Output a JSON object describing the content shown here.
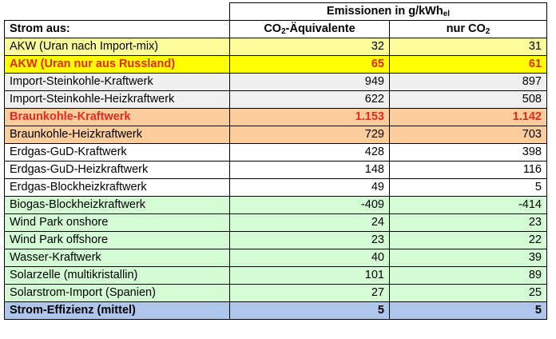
{
  "header": {
    "group_title_main": "Emissionen in g/kWh",
    "group_title_sub": "el",
    "row_label": "Strom aus:",
    "col1_pre": "CO",
    "col1_sub": "2",
    "col1_post": "-Äquivalente",
    "col2_pre": "nur CO",
    "col2_sub": "2"
  },
  "rows": [
    {
      "label": "AKW (Uran nach Import-mix)",
      "co2eq": "32",
      "co2": "31",
      "bg": "#fdfd9b",
      "style": "normal"
    },
    {
      "label": "AKW (Uran nur aus Russland)",
      "co2eq": "65",
      "co2": "61",
      "bg": "#ffff00",
      "style": "red"
    },
    {
      "label": "Import-Steinkohle-Kraftwerk",
      "co2eq": "949",
      "co2": "897",
      "bg": "#f0f0f0",
      "style": "normal"
    },
    {
      "label": "Import-Steinkohle-Heizkraftwerk",
      "co2eq": "622",
      "co2": "508",
      "bg": "#f0f0f0",
      "style": "normal"
    },
    {
      "label": "Braunkohle-Kraftwerk",
      "co2eq": "1.153",
      "co2": "1.142",
      "bg": "#fbcd9c",
      "style": "red"
    },
    {
      "label": "Braunkohle-Heizkraftwerk",
      "co2eq": "729",
      "co2": "703",
      "bg": "#fbcd9c",
      "style": "normal"
    },
    {
      "label": "Erdgas-GuD-Kraftwerk",
      "co2eq": "428",
      "co2": "398",
      "bg": "#ffffff",
      "style": "normal"
    },
    {
      "label": "Erdgas-GuD-Heizkraftwerk",
      "co2eq": "148",
      "co2": "116",
      "bg": "#ffffff",
      "style": "normal"
    },
    {
      "label": "Erdgas-Blockheizkraftwerk",
      "co2eq": "49",
      "co2": "5",
      "bg": "#ffffff",
      "style": "normal"
    },
    {
      "label": "Biogas-Blockheizkraftwerk",
      "co2eq": "-409",
      "co2": "-414",
      "bg": "#d3fbd4",
      "style": "normal"
    },
    {
      "label": "Wind Park onshore",
      "co2eq": "24",
      "co2": "23",
      "bg": "#d3fbd4",
      "style": "normal"
    },
    {
      "label": "Wind Park offshore",
      "co2eq": "23",
      "co2": "22",
      "bg": "#d3fbd4",
      "style": "normal"
    },
    {
      "label": "Wasser-Kraftwerk",
      "co2eq": "40",
      "co2": "39",
      "bg": "#d3fbd4",
      "style": "normal"
    },
    {
      "label": "Solarzelle (multikristallin)",
      "co2eq": "101",
      "co2": "89",
      "bg": "#d3fbd4",
      "style": "normal"
    },
    {
      "label": "Solarstrom-Import (Spanien)",
      "co2eq": "27",
      "co2": "25",
      "bg": "#d3fbd4",
      "style": "normal"
    },
    {
      "label": "Strom-Effizienz (mittel)",
      "co2eq": "5",
      "co2": "5",
      "bg": "#aec6ec",
      "style": "bold"
    }
  ]
}
